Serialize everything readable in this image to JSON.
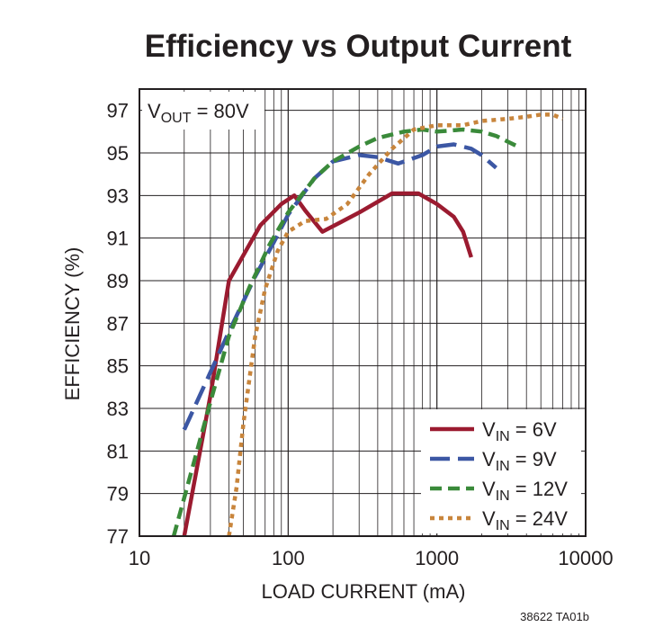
{
  "chart_data": {
    "type": "line",
    "title": "Efficiency vs Output Current",
    "xlabel": "LOAD CURRENT (mA)",
    "ylabel": "EFFICIENCY (%)",
    "xscale": "log",
    "xlim": [
      10,
      10000
    ],
    "ylim": [
      77,
      98
    ],
    "x_ticks": [
      10,
      100,
      1000,
      10000
    ],
    "x_tick_labels": [
      "10",
      "100",
      "1000",
      "10000"
    ],
    "y_ticks": [
      77,
      79,
      81,
      83,
      85,
      87,
      89,
      91,
      93,
      95,
      97
    ],
    "y_tick_labels": [
      "77",
      "79",
      "81",
      "83",
      "85",
      "87",
      "89",
      "91",
      "93",
      "95",
      "97"
    ],
    "grid": true,
    "annotation": {
      "text_main": "V",
      "text_sub": "OUT",
      "text_rest": " = 80V"
    },
    "figure_id": "38622 TA01b",
    "legend_position": "bottom-right",
    "series": [
      {
        "name": "VIN = 6V",
        "label_main": "V",
        "label_sub": "IN",
        "label_rest": " = 6V",
        "color": "#9b1b30",
        "dash": "solid",
        "points": [
          [
            20,
            77.0
          ],
          [
            30,
            83.6
          ],
          [
            40,
            89.0
          ],
          [
            65,
            91.6
          ],
          [
            90,
            92.6
          ],
          [
            110,
            93.0
          ],
          [
            130,
            92.3
          ],
          [
            170,
            91.3
          ],
          [
            300,
            92.2
          ],
          [
            500,
            93.1
          ],
          [
            750,
            93.1
          ],
          [
            1000,
            92.6
          ],
          [
            1300,
            92.0
          ],
          [
            1500,
            91.3
          ],
          [
            1700,
            90.1
          ]
        ]
      },
      {
        "name": "VIN = 9V",
        "label_main": "V",
        "label_sub": "IN",
        "label_rest": " = 9V",
        "color": "#3c57a4",
        "dash": "longdash",
        "points": [
          [
            20,
            82.0
          ],
          [
            30,
            84.7
          ],
          [
            40,
            86.6
          ],
          [
            60,
            89.2
          ],
          [
            80,
            90.8
          ],
          [
            100,
            92.1
          ],
          [
            150,
            93.8
          ],
          [
            200,
            94.6
          ],
          [
            300,
            94.9
          ],
          [
            400,
            94.8
          ],
          [
            550,
            94.5
          ],
          [
            800,
            94.9
          ],
          [
            1000,
            95.3
          ],
          [
            1300,
            95.4
          ],
          [
            1700,
            95.2
          ],
          [
            2000,
            94.9
          ],
          [
            2500,
            94.3
          ]
        ]
      },
      {
        "name": "VIN = 12V",
        "label_main": "V",
        "label_sub": "IN",
        "label_rest": " = 12V",
        "color": "#3a8a3a",
        "dash": "dash",
        "points": [
          [
            17,
            77.0
          ],
          [
            20,
            78.8
          ],
          [
            30,
            83.3
          ],
          [
            40,
            86.4
          ],
          [
            55,
            88.7
          ],
          [
            75,
            90.7
          ],
          [
            100,
            92.2
          ],
          [
            150,
            93.8
          ],
          [
            200,
            94.6
          ],
          [
            300,
            95.3
          ],
          [
            400,
            95.7
          ],
          [
            600,
            96.0
          ],
          [
            800,
            96.1
          ],
          [
            1000,
            96.0
          ],
          [
            1500,
            96.1
          ],
          [
            2000,
            96.0
          ],
          [
            2500,
            95.8
          ],
          [
            3500,
            95.3
          ]
        ]
      },
      {
        "name": "VIN = 24V",
        "label_main": "V",
        "label_sub": "IN",
        "label_rest": " = 24V",
        "color": "#c8853c",
        "dash": "dot",
        "points": [
          [
            40,
            77.0
          ],
          [
            45,
            79.3
          ],
          [
            50,
            82.3
          ],
          [
            60,
            86.4
          ],
          [
            70,
            88.6
          ],
          [
            85,
            90.4
          ],
          [
            100,
            91.3
          ],
          [
            130,
            91.8
          ],
          [
            180,
            91.9
          ],
          [
            250,
            92.6
          ],
          [
            350,
            94.0
          ],
          [
            500,
            95.2
          ],
          [
            700,
            96.1
          ],
          [
            1000,
            96.3
          ],
          [
            1500,
            96.3
          ],
          [
            2000,
            96.5
          ],
          [
            3000,
            96.6
          ],
          [
            4000,
            96.7
          ],
          [
            5000,
            96.8
          ],
          [
            6000,
            96.8
          ],
          [
            7000,
            96.6
          ]
        ]
      }
    ]
  }
}
